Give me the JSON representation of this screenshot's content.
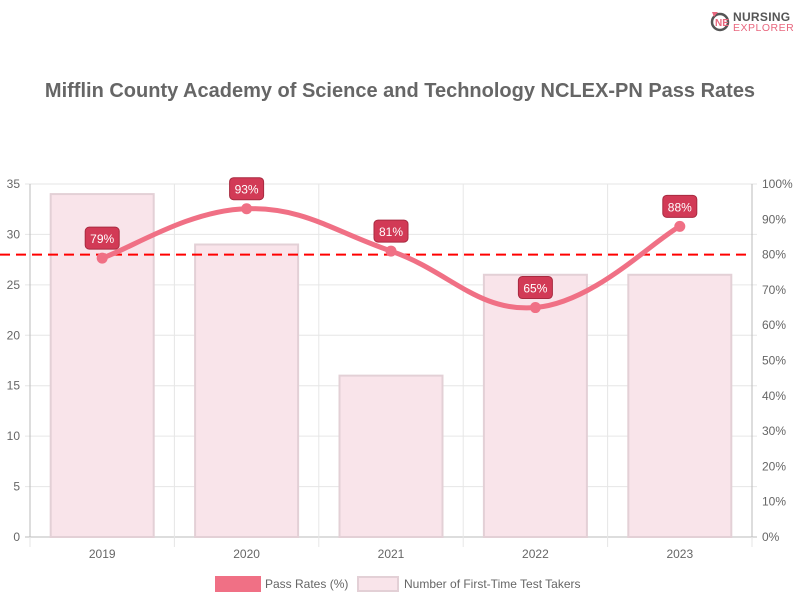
{
  "logo": {
    "line1": "NURSING",
    "line2": "EXPLORER"
  },
  "chart_data": {
    "type": "bar+line",
    "title": "Mifflin County Academy of Science and Technology NCLEX-PN Pass Rates",
    "categories": [
      "2019",
      "2020",
      "2021",
      "2022",
      "2023"
    ],
    "series": [
      {
        "name": "Pass Rates (%)",
        "type": "line",
        "axis": "right",
        "values": [
          79,
          93,
          81,
          65,
          88
        ],
        "labels": [
          "79%",
          "93%",
          "81%",
          "65%",
          "88%"
        ],
        "color": "#f07085"
      },
      {
        "name": "Number of First-Time Test Takers",
        "type": "bar",
        "axis": "left",
        "values": [
          34,
          29,
          16,
          26,
          26
        ],
        "color": "#f9e4ea"
      }
    ],
    "reference_line": {
      "value": 80,
      "axis": "right",
      "color": "#ff0000",
      "style": "dashed"
    },
    "left_axis": {
      "range": [
        0,
        35
      ],
      "ticks": [
        "0",
        "5",
        "10",
        "15",
        "20",
        "25",
        "30",
        "35"
      ]
    },
    "right_axis": {
      "range": [
        0,
        100
      ],
      "ticks": [
        "0%",
        "10%",
        "20%",
        "30%",
        "40%",
        "50%",
        "60%",
        "70%",
        "80%",
        "90%",
        "100%"
      ]
    },
    "grid": true,
    "legend": "bottom"
  }
}
